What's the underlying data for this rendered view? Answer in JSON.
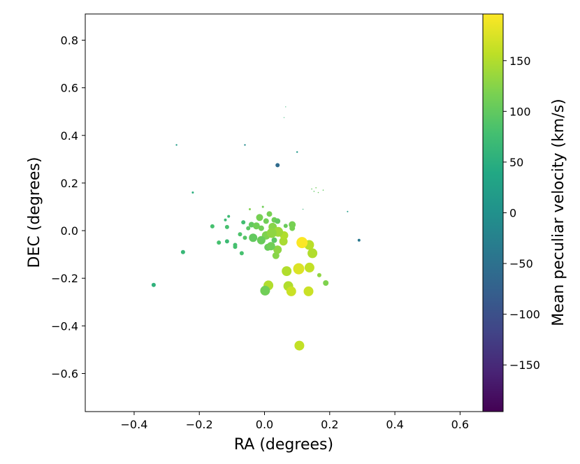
{
  "chart_data": {
    "type": "scatter",
    "xlabel": "RA (degrees)",
    "ylabel": "DEC (degrees)",
    "colorbar_label": "Mean peculiar velocity (km/s)",
    "colormap": "viridis",
    "xlim": [
      -0.55,
      0.67
    ],
    "ylim": [
      -0.76,
      0.91
    ],
    "clim": [
      -196,
      196
    ],
    "grid": false,
    "x_ticks": [
      -0.4,
      -0.2,
      0.0,
      0.2,
      0.4,
      0.6
    ],
    "x_tick_labels": [
      "−0.4",
      "−0.2",
      "0.0",
      "0.2",
      "0.4",
      "0.6"
    ],
    "y_ticks": [
      -0.6,
      -0.4,
      -0.2,
      0.0,
      0.2,
      0.4,
      0.6,
      0.8
    ],
    "y_tick_labels": [
      "−0.6",
      "−0.4",
      "−0.2",
      "0.0",
      "0.2",
      "0.4",
      "0.6",
      "0.8"
    ],
    "c_ticks": [
      -150,
      -100,
      -50,
      0,
      50,
      100,
      150
    ],
    "c_tick_labels": [
      "−150",
      "−100",
      "−50",
      "0",
      "50",
      "100",
      "150"
    ],
    "points": [
      {
        "ra": 0.115,
        "dec": -0.05,
        "v": 195,
        "size": 8
      },
      {
        "ra": 0.105,
        "dec": -0.16,
        "v": 175,
        "size": 8
      },
      {
        "ra": 0.137,
        "dec": -0.06,
        "v": 155,
        "size": 7
      },
      {
        "ra": 0.147,
        "dec": -0.095,
        "v": 150,
        "size": 7
      },
      {
        "ra": 0.068,
        "dec": -0.17,
        "v": 150,
        "size": 7
      },
      {
        "ra": 0.138,
        "dec": -0.155,
        "v": 160,
        "size": 7
      },
      {
        "ra": 0.073,
        "dec": -0.233,
        "v": 150,
        "size": 7
      },
      {
        "ra": 0.082,
        "dec": -0.255,
        "v": 165,
        "size": 7
      },
      {
        "ra": 0.135,
        "dec": -0.255,
        "v": 165,
        "size": 7
      },
      {
        "ra": 0.012,
        "dec": -0.23,
        "v": 150,
        "size": 7
      },
      {
        "ra": 0.002,
        "dec": -0.252,
        "v": 110,
        "size": 7
      },
      {
        "ra": 0.107,
        "dec": -0.483,
        "v": 160,
        "size": 7
      },
      {
        "ra": 0.042,
        "dec": -0.005,
        "v": 140,
        "size": 7
      },
      {
        "ra": 0.022,
        "dec": -0.01,
        "v": 130,
        "size": 7
      },
      {
        "ra": 0.058,
        "dec": -0.045,
        "v": 145,
        "size": 6
      },
      {
        "ra": 0.06,
        "dec": -0.02,
        "v": 150,
        "size": 6
      },
      {
        "ra": 0.04,
        "dec": -0.08,
        "v": 130,
        "size": 6
      },
      {
        "ra": 0.035,
        "dec": -0.105,
        "v": 125,
        "size": 5
      },
      {
        "ra": 0.025,
        "dec": 0.015,
        "v": 125,
        "size": 6
      },
      {
        "ra": 0.005,
        "dec": -0.02,
        "v": 120,
        "size": 6
      },
      {
        "ra": -0.01,
        "dec": -0.04,
        "v": 105,
        "size": 6
      },
      {
        "ra": -0.035,
        "dec": -0.03,
        "v": 100,
        "size": 6
      },
      {
        "ra": -0.025,
        "dec": 0.02,
        "v": 110,
        "size": 5
      },
      {
        "ra": -0.015,
        "dec": 0.055,
        "v": 115,
        "size": 5
      },
      {
        "ra": 0.02,
        "dec": -0.065,
        "v": 110,
        "size": 6
      },
      {
        "ra": 0.01,
        "dec": -0.07,
        "v": 105,
        "size": 5
      },
      {
        "ra": 0.085,
        "dec": 0.025,
        "v": 115,
        "size": 5
      },
      {
        "ra": 0.085,
        "dec": 0.01,
        "v": 115,
        "size": 4
      },
      {
        "ra": 0.015,
        "dec": 0.07,
        "v": 115,
        "size": 4
      },
      {
        "ra": 0.03,
        "dec": 0.045,
        "v": 110,
        "size": 4
      },
      {
        "ra": -0.04,
        "dec": 0.025,
        "v": 100,
        "size": 4
      },
      {
        "ra": 0.005,
        "dec": 0.04,
        "v": 110,
        "size": 4
      },
      {
        "ra": 0.04,
        "dec": 0.04,
        "v": 100,
        "size": 4
      },
      {
        "ra": -0.05,
        "dec": 0.01,
        "v": 95,
        "size": 3
      },
      {
        "ra": -0.01,
        "dec": 0.01,
        "v": 110,
        "size": 4
      },
      {
        "ra": 0.03,
        "dec": -0.04,
        "v": 95,
        "size": 4
      },
      {
        "ra": 0.065,
        "dec": 0.02,
        "v": 105,
        "size": 3
      },
      {
        "ra": 0.168,
        "dec": -0.187,
        "v": 130,
        "size": 3
      },
      {
        "ra": 0.188,
        "dec": -0.22,
        "v": 120,
        "size": 4
      },
      {
        "ra": -0.06,
        "dec": -0.03,
        "v": 90,
        "size": 3
      },
      {
        "ra": -0.075,
        "dec": -0.015,
        "v": 85,
        "size": 3
      },
      {
        "ra": -0.09,
        "dec": -0.06,
        "v": 80,
        "size": 3
      },
      {
        "ra": -0.09,
        "dec": -0.068,
        "v": 80,
        "size": 3
      },
      {
        "ra": -0.07,
        "dec": -0.095,
        "v": 80,
        "size": 3
      },
      {
        "ra": -0.115,
        "dec": -0.045,
        "v": 70,
        "size": 3
      },
      {
        "ra": -0.14,
        "dec": -0.05,
        "v": 80,
        "size": 3
      },
      {
        "ra": -0.115,
        "dec": 0.015,
        "v": 80,
        "size": 3
      },
      {
        "ra": -0.16,
        "dec": 0.018,
        "v": 80,
        "size": 3
      },
      {
        "ra": -0.065,
        "dec": 0.035,
        "v": 75,
        "size": 3
      },
      {
        "ra": -0.11,
        "dec": 0.06,
        "v": 70,
        "size": 2
      },
      {
        "ra": -0.12,
        "dec": 0.045,
        "v": 70,
        "size": 2
      },
      {
        "ra": -0.25,
        "dec": -0.09,
        "v": 65,
        "size": 3
      },
      {
        "ra": -0.34,
        "dec": -0.228,
        "v": 55,
        "size": 3
      },
      {
        "ra": 0.04,
        "dec": 0.275,
        "v": -60,
        "size": 3
      },
      {
        "ra": 0.29,
        "dec": -0.04,
        "v": -40,
        "size": 2
      },
      {
        "ra": -0.22,
        "dec": 0.16,
        "v": 50,
        "size": 1.5
      },
      {
        "ra": -0.27,
        "dec": 0.36,
        "v": 20,
        "size": 1.2
      },
      {
        "ra": -0.06,
        "dec": 0.36,
        "v": -10,
        "size": 1.2
      },
      {
        "ra": 0.1,
        "dec": 0.33,
        "v": 10,
        "size": 1.2
      },
      {
        "ra": 0.255,
        "dec": 0.08,
        "v": 20,
        "size": 1
      },
      {
        "ra": 0.145,
        "dec": 0.175,
        "v": 100,
        "size": 0.8
      },
      {
        "ra": 0.158,
        "dec": 0.18,
        "v": 110,
        "size": 0.8
      },
      {
        "ra": 0.165,
        "dec": 0.16,
        "v": 105,
        "size": 0.8
      },
      {
        "ra": 0.152,
        "dec": 0.165,
        "v": 95,
        "size": 0.8
      },
      {
        "ra": 0.18,
        "dec": 0.17,
        "v": 100,
        "size": 0.8
      },
      {
        "ra": 0.06,
        "dec": 0.475,
        "v": 60,
        "size": 0.6
      },
      {
        "ra": 0.065,
        "dec": 0.52,
        "v": 60,
        "size": 0.6
      },
      {
        "ra": 0.118,
        "dec": 0.09,
        "v": 60,
        "size": 0.7
      },
      {
        "ra": -0.005,
        "dec": 0.1,
        "v": 110,
        "size": 1.5
      },
      {
        "ra": -0.045,
        "dec": 0.09,
        "v": 120,
        "size": 1.5
      }
    ]
  }
}
